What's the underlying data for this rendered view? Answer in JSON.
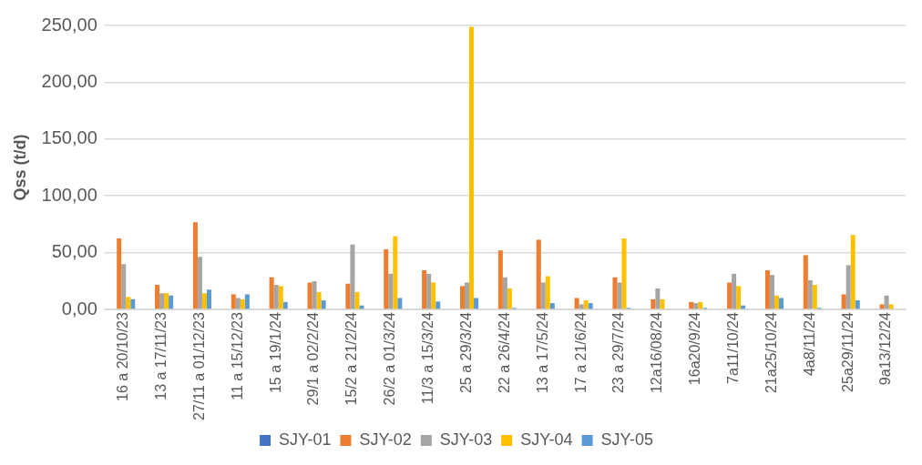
{
  "chart_data": {
    "type": "bar",
    "ylabel": "Qss (t/d)",
    "categories": [
      "16 a 20/10/23",
      "13 a 17/11/23",
      "27/11 a 01/12/23",
      "11 a 15/12/23",
      "15 a 19/1/24",
      "29/1 a 02/2/24",
      "15/2 a 21/2/24",
      "26/2 a 01/3/24",
      "11/3 a 15/3/24",
      "25 a 29/3/24",
      "22 a 26/4/24",
      "13 a 17/5/24",
      "17 a 21/6/24",
      "23 a 29/7/24",
      "12a16/08/24",
      "16a20/9/24",
      "7a11/10/24",
      "21a25/10/24",
      "4a8/11/24",
      "25a29/11/24",
      "9a13/12/24"
    ],
    "series": [
      {
        "name": "SJY-01",
        "color": "#4472c4",
        "values": [
          0,
          0,
          0,
          0,
          0,
          0,
          0,
          0,
          0,
          0,
          0,
          0,
          0,
          0,
          0,
          0,
          0,
          0,
          0,
          0,
          0
        ]
      },
      {
        "name": "SJY-02",
        "color": "#ed7d31",
        "values": [
          62.5,
          21.6,
          76.8,
          13.3,
          28.3,
          23.7,
          22.7,
          53,
          34.5,
          20.6,
          52,
          61.4,
          10.1,
          28.3,
          9,
          6.6,
          23.7,
          34.5,
          47.8,
          13.3,
          4.5
        ]
      },
      {
        "name": "SJY-03",
        "color": "#a5a5a5",
        "values": [
          40,
          14.3,
          46.4,
          10.1,
          21.6,
          24.8,
          57.2,
          31.4,
          31.4,
          23.7,
          28.3,
          23.7,
          4.5,
          23.7,
          18.5,
          5.6,
          31.4,
          30.4,
          25.8,
          39,
          12.2
        ]
      },
      {
        "name": "SJY-04",
        "color": "#ffc000",
        "values": [
          11,
          14.3,
          14.3,
          9,
          20.6,
          15.4,
          15.4,
          64.5,
          23.7,
          248.8,
          18.5,
          29.3,
          8,
          62.5,
          9,
          6.6,
          20.6,
          12.2,
          21.6,
          65.6,
          4.5
        ]
      },
      {
        "name": "SJY-05",
        "color": "#5b9bd5",
        "values": [
          9,
          12.2,
          17.4,
          13.3,
          6.6,
          8,
          3.5,
          10.1,
          7,
          10.1,
          1.4,
          5.6,
          5.6,
          1.4,
          0,
          1.4,
          3.5,
          10.1,
          1.4,
          8,
          0
        ]
      }
    ],
    "ylim": [
      0,
      250
    ],
    "yticks": [
      {
        "value": 0,
        "label": "0,00"
      },
      {
        "value": 50,
        "label": "50,00"
      },
      {
        "value": 100,
        "label": "100,00"
      },
      {
        "value": 150,
        "label": "150,00"
      },
      {
        "value": 200,
        "label": "200,00"
      },
      {
        "value": 250,
        "label": "250,00"
      }
    ],
    "grid": "y",
    "legend": "bottom"
  }
}
